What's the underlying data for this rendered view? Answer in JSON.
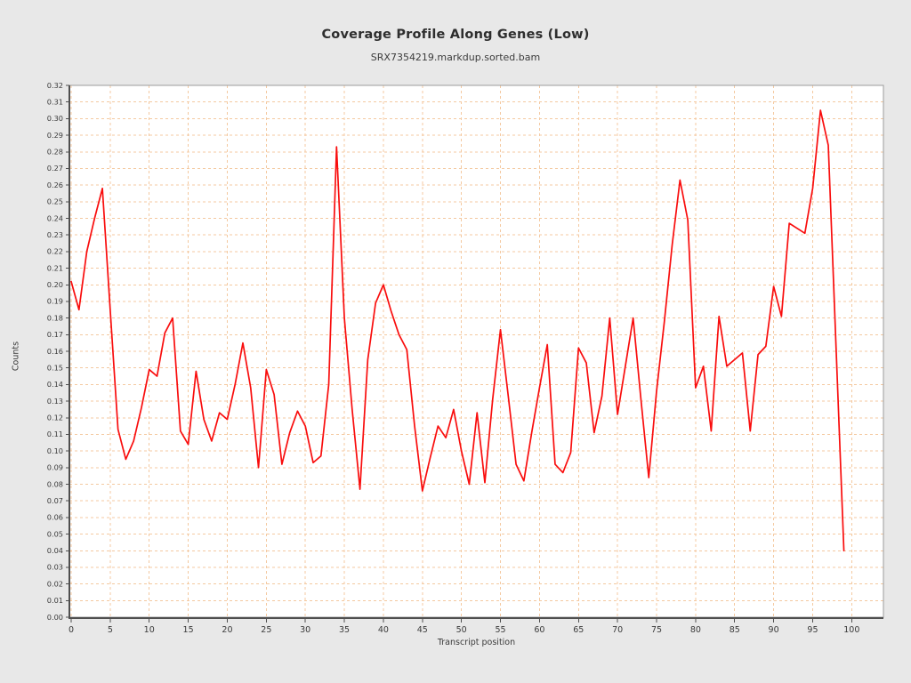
{
  "page": {
    "background": "#e8e8e8"
  },
  "chart_data": {
    "type": "line",
    "title": "Coverage Profile Along Genes (Low)",
    "subtitle": "SRX7354219.markdup.sorted.bam",
    "xlabel": "Transcript position",
    "ylabel": "Counts",
    "series_name": "coverage",
    "x_start": 0,
    "x": [
      0,
      1,
      2,
      3,
      4,
      5,
      6,
      7,
      8,
      9,
      10,
      11,
      12,
      13,
      14,
      15,
      16,
      17,
      18,
      19,
      20,
      21,
      22,
      23,
      24,
      25,
      26,
      27,
      28,
      29,
      30,
      31,
      32,
      33,
      34,
      35,
      36,
      37,
      38,
      39,
      40,
      41,
      42,
      43,
      44,
      45,
      46,
      47,
      48,
      49,
      50,
      51,
      52,
      53,
      54,
      55,
      56,
      57,
      58,
      59,
      60,
      61,
      62,
      63,
      64,
      65,
      66,
      67,
      68,
      69,
      70,
      71,
      72,
      73,
      74,
      75,
      76,
      77,
      78,
      79,
      80,
      81,
      82,
      83,
      84,
      85,
      86,
      87,
      88,
      89,
      90,
      91,
      92,
      93,
      94,
      95,
      96,
      97,
      98,
      99
    ],
    "values": [
      0.202,
      0.185,
      0.22,
      0.24,
      0.258,
      0.185,
      0.113,
      0.095,
      0.106,
      0.126,
      0.149,
      0.145,
      0.171,
      0.18,
      0.112,
      0.104,
      0.148,
      0.119,
      0.106,
      0.123,
      0.119,
      0.14,
      0.165,
      0.138,
      0.09,
      0.149,
      0.134,
      0.092,
      0.111,
      0.124,
      0.115,
      0.093,
      0.097,
      0.14,
      0.283,
      0.18,
      0.125,
      0.077,
      0.155,
      0.189,
      0.2,
      0.184,
      0.17,
      0.161,
      0.115,
      0.076,
      0.096,
      0.115,
      0.108,
      0.125,
      0.1,
      0.08,
      0.123,
      0.081,
      0.131,
      0.173,
      0.133,
      0.092,
      0.082,
      0.111,
      0.138,
      0.164,
      0.092,
      0.087,
      0.099,
      0.162,
      0.153,
      0.111,
      0.133,
      0.18,
      0.122,
      0.151,
      0.18,
      0.131,
      0.084,
      0.136,
      0.178,
      0.224,
      0.263,
      0.239,
      0.138,
      0.151,
      0.112,
      0.181,
      0.151,
      0.155,
      0.159,
      0.112,
      0.158,
      0.163,
      0.199,
      0.181,
      0.237,
      0.234,
      0.231,
      0.258,
      0.305,
      0.284,
      0.162,
      0.04
    ],
    "xlim": [
      -0.25,
      104.1
    ],
    "ylim": [
      0,
      0.32
    ],
    "xticks": [
      0,
      5,
      10,
      15,
      20,
      25,
      30,
      35,
      40,
      45,
      50,
      55,
      60,
      65,
      70,
      75,
      80,
      85,
      90,
      95,
      100
    ],
    "yticks": [
      "0.00",
      "0.01",
      "0.02",
      "0.03",
      "0.04",
      "0.05",
      "0.06",
      "0.07",
      "0.08",
      "0.09",
      "0.10",
      "0.11",
      "0.12",
      "0.13",
      "0.14",
      "0.15",
      "0.16",
      "0.17",
      "0.18",
      "0.19",
      "0.20",
      "0.21",
      "0.22",
      "0.23",
      "0.24",
      "0.25",
      "0.26",
      "0.27",
      "0.28",
      "0.29",
      "0.30",
      "0.31",
      "0.32"
    ],
    "grid": true,
    "grid_style": "dashed",
    "legend": "none",
    "colors": {
      "line": "#f90d0d",
      "grid": "#f4c9a0",
      "plot_background": "#ffffff",
      "outer_background": "#e8e8e8",
      "spine": "#4f4f4f",
      "border": "#9b9b9b",
      "tick_text": "#3a3a3a"
    }
  }
}
